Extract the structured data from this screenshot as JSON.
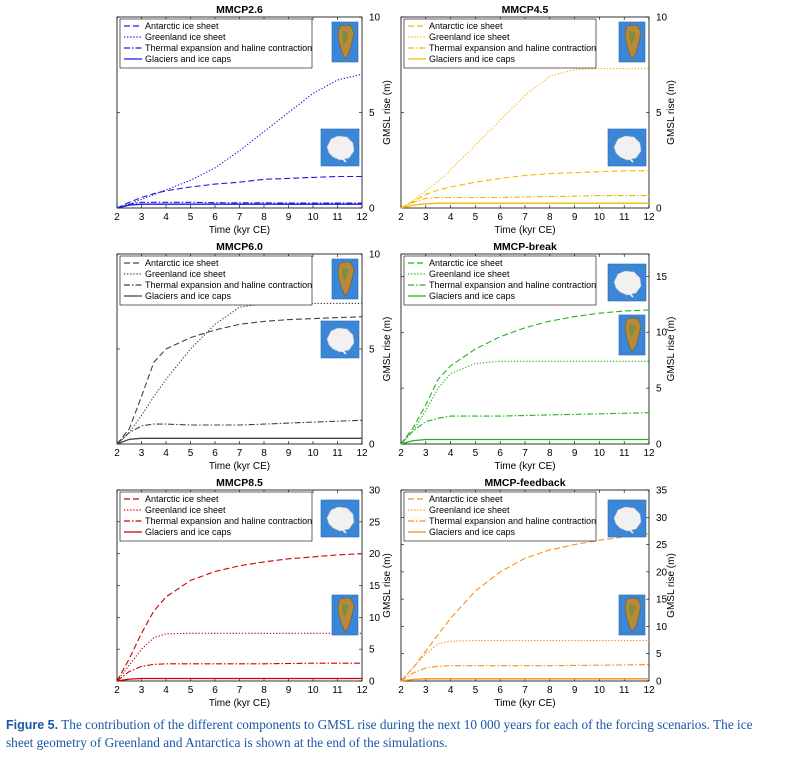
{
  "legend_labels": [
    "Antarctic ice sheet",
    "Greenland ice sheet",
    "Thermal expansion and haline contraction",
    "Glaciers and ice caps"
  ],
  "xlabel": "Time (kyr CE)",
  "ylabel": "GMSL rise (m)",
  "caption": {
    "lead": "Figure 5.",
    "text": " The contribution of the different components to GMSL rise during the next 10 000 years for each of the forcing scenarios. The ice sheet geometry of Greenland and Antarctica is shown at the end of the simulations."
  },
  "chart_data": [
    {
      "type": "line",
      "title": "MMCP2.6",
      "color": "#1a1ae0",
      "x": [
        2,
        2.5,
        3,
        3.5,
        4,
        5,
        6,
        7,
        8,
        9,
        10,
        11,
        12
      ],
      "xlim": [
        2,
        12
      ],
      "ylim": [
        0,
        10
      ],
      "yticks": [
        0,
        5,
        10
      ],
      "xlabel": "Time (kyr CE)",
      "ylabel": "GMSL rise (m)",
      "series": [
        {
          "name": "Antarctic ice sheet",
          "style": "dashed",
          "values": [
            0,
            0.3,
            0.55,
            0.75,
            0.9,
            1.1,
            1.25,
            1.35,
            1.5,
            1.55,
            1.6,
            1.65,
            1.65
          ]
        },
        {
          "name": "Greenland ice sheet",
          "style": "dotted",
          "values": [
            0,
            0.2,
            0.45,
            0.7,
            0.95,
            1.45,
            2.1,
            3.0,
            4.0,
            5.0,
            6.0,
            6.7,
            7.0
          ]
        },
        {
          "name": "Thermal expansion and haline contraction",
          "style": "dashdot",
          "values": [
            0,
            0.2,
            0.3,
            0.3,
            0.3,
            0.3,
            0.28,
            0.27,
            0.27,
            0.26,
            0.26,
            0.26,
            0.26
          ]
        },
        {
          "name": "Glaciers and ice caps",
          "style": "solid",
          "values": [
            0,
            0.15,
            0.2,
            0.2,
            0.2,
            0.2,
            0.2,
            0.2,
            0.2,
            0.2,
            0.2,
            0.2,
            0.2
          ]
        }
      ],
      "icons": [
        "greenland",
        "antarctica"
      ]
    },
    {
      "type": "line",
      "title": "MMCP4.5",
      "color": "#f5b800",
      "x": [
        2,
        2.5,
        3,
        3.5,
        4,
        5,
        6,
        7,
        8,
        9,
        10,
        11,
        12
      ],
      "xlim": [
        2,
        12
      ],
      "ylim": [
        0,
        10
      ],
      "yticks": [
        0,
        5,
        10
      ],
      "xlabel": "Time (kyr CE)",
      "ylabel": "GMSL rise (m)",
      "series": [
        {
          "name": "Antarctic ice sheet",
          "style": "dashed",
          "values": [
            0,
            0.35,
            0.7,
            0.95,
            1.1,
            1.35,
            1.55,
            1.7,
            1.8,
            1.85,
            1.9,
            1.95,
            1.95
          ]
        },
        {
          "name": "Greenland ice sheet",
          "style": "dotted",
          "values": [
            0,
            0.4,
            0.9,
            1.4,
            2.0,
            3.3,
            4.6,
            5.9,
            6.9,
            7.25,
            7.3,
            7.3,
            7.3
          ]
        },
        {
          "name": "Thermal expansion and haline contraction",
          "style": "dashdot",
          "values": [
            0,
            0.3,
            0.5,
            0.55,
            0.55,
            0.55,
            0.55,
            0.58,
            0.6,
            0.62,
            0.65,
            0.65,
            0.65
          ]
        },
        {
          "name": "Glaciers and ice caps",
          "style": "solid",
          "values": [
            0,
            0.15,
            0.22,
            0.25,
            0.25,
            0.25,
            0.25,
            0.25,
            0.25,
            0.25,
            0.25,
            0.25,
            0.25
          ]
        }
      ],
      "icons": [
        "greenland",
        "antarctica"
      ]
    },
    {
      "type": "line",
      "title": "MMCP6.0",
      "color": "#444444",
      "x": [
        2,
        2.5,
        3,
        3.5,
        4,
        5,
        6,
        7,
        8,
        9,
        10,
        11,
        12
      ],
      "xlim": [
        2,
        12
      ],
      "ylim": [
        0,
        10
      ],
      "yticks": [
        0,
        5,
        10
      ],
      "xlabel": "Time (kyr CE)",
      "ylabel": "GMSL rise (m)",
      "series": [
        {
          "name": "Antarctic ice sheet",
          "style": "dashed",
          "values": [
            0,
            0.8,
            2.5,
            4.3,
            5.0,
            5.6,
            6.0,
            6.3,
            6.45,
            6.55,
            6.6,
            6.65,
            6.7
          ]
        },
        {
          "name": "Greenland ice sheet",
          "style": "dotted",
          "values": [
            0,
            0.6,
            1.5,
            2.5,
            3.4,
            5.0,
            6.3,
            7.2,
            7.4,
            7.4,
            7.4,
            7.4,
            7.4
          ]
        },
        {
          "name": "Thermal expansion and haline contraction",
          "style": "dashdot",
          "values": [
            0,
            0.6,
            0.95,
            1.05,
            1.05,
            1.0,
            1.0,
            1.0,
            1.05,
            1.1,
            1.15,
            1.2,
            1.25
          ]
        },
        {
          "name": "Glaciers and ice caps",
          "style": "solid",
          "values": [
            0,
            0.25,
            0.3,
            0.3,
            0.3,
            0.3,
            0.3,
            0.3,
            0.3,
            0.3,
            0.3,
            0.3,
            0.3
          ]
        }
      ],
      "icons": [
        "greenland",
        "antarctica"
      ]
    },
    {
      "type": "line",
      "title": "MMCP-break",
      "color": "#1fb51f",
      "x": [
        2,
        2.5,
        3,
        3.5,
        4,
        5,
        6,
        7,
        8,
        9,
        10,
        11,
        12
      ],
      "xlim": [
        2,
        12
      ],
      "ylim": [
        0,
        17
      ],
      "yticks": [
        0,
        5,
        10,
        15
      ],
      "xlabel": "Time (kyr CE)",
      "ylabel": "GMSL rise (m)",
      "series": [
        {
          "name": "Antarctic ice sheet",
          "style": "dashed",
          "values": [
            0,
            1.5,
            3.5,
            5.8,
            7.0,
            8.5,
            9.6,
            10.4,
            11.0,
            11.4,
            11.7,
            11.9,
            12.0
          ]
        },
        {
          "name": "Greenland ice sheet",
          "style": "dotted",
          "values": [
            0,
            1.2,
            3.0,
            5.0,
            6.3,
            7.2,
            7.4,
            7.4,
            7.4,
            7.4,
            7.4,
            7.4,
            7.4
          ]
        },
        {
          "name": "Thermal expansion and haline contraction",
          "style": "dashdot",
          "values": [
            0,
            1.2,
            2.0,
            2.3,
            2.5,
            2.5,
            2.5,
            2.55,
            2.6,
            2.65,
            2.7,
            2.75,
            2.8
          ]
        },
        {
          "name": "Glaciers and ice caps",
          "style": "solid",
          "values": [
            0,
            0.3,
            0.4,
            0.4,
            0.4,
            0.4,
            0.4,
            0.4,
            0.4,
            0.4,
            0.4,
            0.4,
            0.4
          ]
        }
      ],
      "icons": [
        "antarctica",
        "greenland"
      ]
    },
    {
      "type": "line",
      "title": "MMCP8.5",
      "color": "#cc0000",
      "x": [
        2,
        2.5,
        3,
        3.5,
        4,
        5,
        6,
        7,
        8,
        9,
        10,
        11,
        12
      ],
      "xlim": [
        2,
        12
      ],
      "ylim": [
        0,
        30
      ],
      "yticks": [
        0,
        5,
        10,
        15,
        20,
        25,
        30
      ],
      "xlabel": "Time (kyr CE)",
      "ylabel": "GMSL rise (m)",
      "series": [
        {
          "name": "Antarctic ice sheet",
          "style": "dashed",
          "values": [
            0,
            3.5,
            7.5,
            11.0,
            13.2,
            15.8,
            17.2,
            18.1,
            18.7,
            19.2,
            19.5,
            19.8,
            20.0
          ]
        },
        {
          "name": "Greenland ice sheet",
          "style": "dotted",
          "values": [
            0,
            2.5,
            5.0,
            6.8,
            7.4,
            7.5,
            7.5,
            7.5,
            7.5,
            7.5,
            7.5,
            7.5,
            7.5
          ]
        },
        {
          "name": "Thermal expansion and haline contraction",
          "style": "dashdot",
          "values": [
            0,
            1.5,
            2.3,
            2.6,
            2.7,
            2.7,
            2.7,
            2.7,
            2.7,
            2.75,
            2.8,
            2.8,
            2.8
          ]
        },
        {
          "name": "Glaciers and ice caps",
          "style": "solid",
          "values": [
            0,
            0.3,
            0.4,
            0.4,
            0.4,
            0.4,
            0.4,
            0.4,
            0.4,
            0.4,
            0.4,
            0.4,
            0.4
          ]
        }
      ],
      "icons": [
        "antarctica",
        "greenland"
      ]
    },
    {
      "type": "line",
      "title": "MMCP-feedback",
      "color": "#ff8c1a",
      "x": [
        2,
        2.5,
        3,
        3.5,
        4,
        5,
        6,
        7,
        8,
        9,
        10,
        11,
        12
      ],
      "xlim": [
        2,
        12
      ],
      "ylim": [
        0,
        35
      ],
      "yticks": [
        0,
        5,
        10,
        15,
        20,
        25,
        30,
        35
      ],
      "xlabel": "Time (kyr CE)",
      "ylabel": "GMSL rise (m)",
      "series": [
        {
          "name": "Antarctic ice sheet",
          "style": "dashed",
          "values": [
            0,
            2.5,
            5.5,
            8.5,
            11.5,
            16.5,
            20.0,
            22.5,
            24.0,
            25.0,
            25.8,
            26.4,
            27.0
          ]
        },
        {
          "name": "Greenland ice sheet",
          "style": "dotted",
          "values": [
            0,
            2.5,
            5.0,
            6.8,
            7.3,
            7.4,
            7.4,
            7.4,
            7.4,
            7.4,
            7.4,
            7.4,
            7.4
          ]
        },
        {
          "name": "Thermal expansion and haline contraction",
          "style": "dashdot",
          "values": [
            0,
            1.5,
            2.4,
            2.7,
            2.8,
            2.8,
            2.8,
            2.8,
            2.8,
            2.85,
            2.9,
            2.95,
            3.0
          ]
        },
        {
          "name": "Glaciers and ice caps",
          "style": "solid",
          "values": [
            0,
            0.3,
            0.4,
            0.4,
            0.4,
            0.4,
            0.4,
            0.4,
            0.4,
            0.4,
            0.4,
            0.4,
            0.4
          ]
        }
      ],
      "icons": [
        "antarctica",
        "greenland"
      ]
    }
  ]
}
